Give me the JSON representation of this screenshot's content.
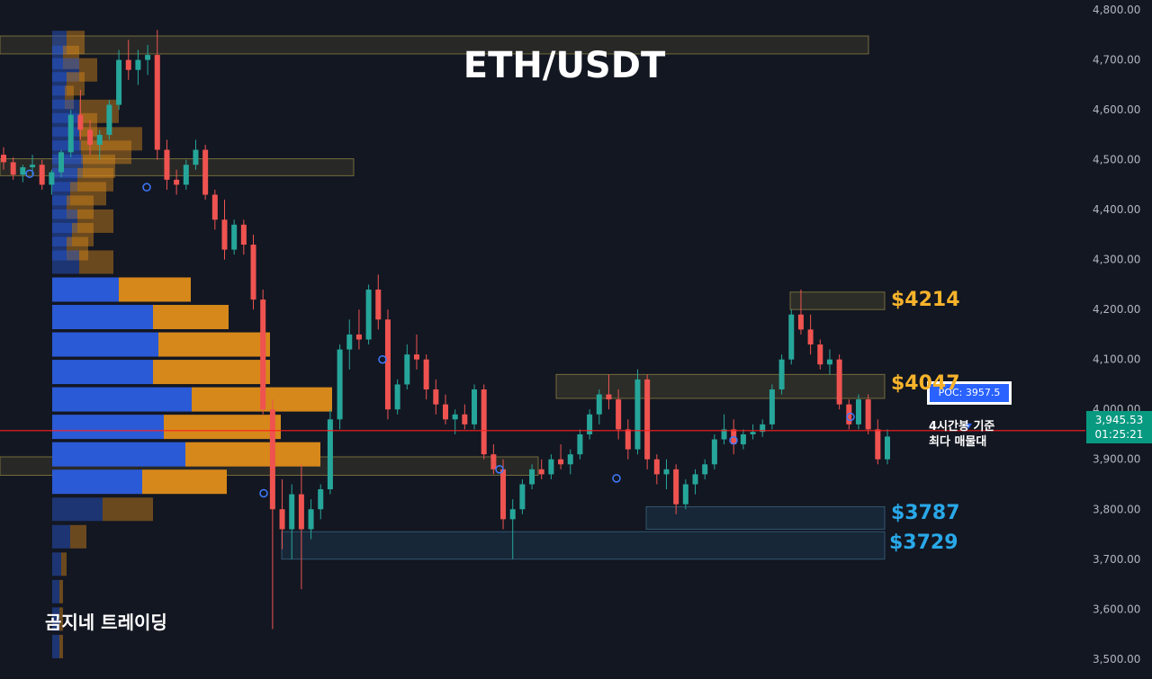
{
  "header": {
    "title": "ETH/USDT"
  },
  "watermark": "곰지네 트레이딩",
  "poc": {
    "label": "POC: 3957.5",
    "note_line1": "4시간봉 기준",
    "note_line2": "최다 매물대"
  },
  "current_price": {
    "price_label": "3,945.53",
    "countdown": "01:25:21",
    "value": 3945.53
  },
  "zones": [
    {
      "label": "$4214",
      "low": 4200,
      "high": 4235,
      "color": "#f7b32b"
    },
    {
      "label": "$4047",
      "low": 4022,
      "high": 4070,
      "color": "#f7b32b"
    },
    {
      "label": "$3787",
      "low": 3760,
      "high": 3805,
      "color": "#29a8e8"
    },
    {
      "label": "$3729",
      "low": 3700,
      "high": 3755,
      "color": "#29a8e8"
    }
  ],
  "colors": {
    "up": "#26a69a",
    "down": "#ef5350",
    "poc_line": "#ff1f1f",
    "profile_blue": "#2b5ad6",
    "profile_orange": "#d6881a"
  },
  "chart_data": {
    "type": "candlestick",
    "title": "ETH/USDT",
    "timeframe": "4H",
    "ylim": [
      3460,
      4820
    ],
    "y_ticks": [
      "3,500.00",
      "3,600.00",
      "3,700.00",
      "3,800.00",
      "3,900.00",
      "4,000.00",
      "4,100.00",
      "4,200.00",
      "4,300.00",
      "4,400.00",
      "4,500.00",
      "4,600.00",
      "4,700.00",
      "4,800.00"
    ],
    "y_tick_values": [
      3500,
      3600,
      3700,
      3800,
      3900,
      4000,
      4100,
      4200,
      4300,
      4400,
      4500,
      4600,
      4700,
      4800
    ],
    "poc_price": 3957.5,
    "last_price": 3945.53,
    "ohlc": [
      [
        4510,
        4525,
        4480,
        4495
      ],
      [
        4495,
        4505,
        4460,
        4470
      ],
      [
        4470,
        4490,
        4455,
        4485
      ],
      [
        4485,
        4510,
        4470,
        4490
      ],
      [
        4490,
        4500,
        4440,
        4450
      ],
      [
        4450,
        4480,
        4430,
        4475
      ],
      [
        4475,
        4520,
        4465,
        4515
      ],
      [
        4515,
        4600,
        4505,
        4590
      ],
      [
        4590,
        4640,
        4540,
        4560
      ],
      [
        4560,
        4580,
        4510,
        4530
      ],
      [
        4530,
        4560,
        4500,
        4550
      ],
      [
        4550,
        4620,
        4540,
        4610
      ],
      [
        4610,
        4720,
        4600,
        4700
      ],
      [
        4700,
        4740,
        4660,
        4680
      ],
      [
        4680,
        4720,
        4650,
        4700
      ],
      [
        4700,
        4730,
        4670,
        4710
      ],
      [
        4710,
        4760,
        4500,
        4520
      ],
      [
        4520,
        4540,
        4440,
        4460
      ],
      [
        4460,
        4480,
        4430,
        4450
      ],
      [
        4450,
        4500,
        4440,
        4490
      ],
      [
        4490,
        4540,
        4480,
        4520
      ],
      [
        4520,
        4530,
        4420,
        4430
      ],
      [
        4430,
        4440,
        4360,
        4380
      ],
      [
        4380,
        4420,
        4300,
        4320
      ],
      [
        4320,
        4380,
        4310,
        4370
      ],
      [
        4370,
        4380,
        4310,
        4330
      ],
      [
        4330,
        4350,
        4200,
        4220
      ],
      [
        4220,
        4240,
        3990,
        4000
      ],
      [
        4000,
        4020,
        3560,
        3800
      ],
      [
        3800,
        3860,
        3720,
        3760
      ],
      [
        3760,
        3850,
        3700,
        3830
      ],
      [
        3830,
        3890,
        3640,
        3760
      ],
      [
        3760,
        3820,
        3740,
        3800
      ],
      [
        3800,
        3850,
        3780,
        3840
      ],
      [
        3840,
        4000,
        3830,
        3980
      ],
      [
        3980,
        4130,
        3960,
        4120
      ],
      [
        4120,
        4180,
        4080,
        4150
      ],
      [
        4150,
        4200,
        4120,
        4140
      ],
      [
        4140,
        4250,
        4130,
        4240
      ],
      [
        4240,
        4270,
        4160,
        4180
      ],
      [
        4180,
        4200,
        3980,
        4000
      ],
      [
        4000,
        4060,
        3990,
        4050
      ],
      [
        4050,
        4130,
        4040,
        4110
      ],
      [
        4110,
        4150,
        4080,
        4100
      ],
      [
        4100,
        4110,
        4020,
        4040
      ],
      [
        4040,
        4060,
        3990,
        4010
      ],
      [
        4010,
        4030,
        3970,
        3980
      ],
      [
        3980,
        4000,
        3950,
        3990
      ],
      [
        3990,
        4010,
        3960,
        3970
      ],
      [
        3970,
        4050,
        3960,
        4040
      ],
      [
        4040,
        4050,
        3900,
        3910
      ],
      [
        3910,
        3930,
        3870,
        3880
      ],
      [
        3880,
        3900,
        3760,
        3780
      ],
      [
        3780,
        3820,
        3700,
        3800
      ],
      [
        3800,
        3860,
        3790,
        3850
      ],
      [
        3850,
        3890,
        3840,
        3880
      ],
      [
        3880,
        3900,
        3860,
        3870
      ],
      [
        3870,
        3910,
        3860,
        3900
      ],
      [
        3900,
        3930,
        3880,
        3890
      ],
      [
        3890,
        3920,
        3870,
        3910
      ],
      [
        3910,
        3960,
        3900,
        3950
      ],
      [
        3950,
        4000,
        3940,
        3990
      ],
      [
        3990,
        4040,
        3970,
        4030
      ],
      [
        4030,
        4070,
        4000,
        4020
      ],
      [
        4020,
        4040,
        3940,
        3960
      ],
      [
        3960,
        3980,
        3900,
        3920
      ],
      [
        3920,
        4080,
        3910,
        4060
      ],
      [
        4060,
        4070,
        3880,
        3900
      ],
      [
        3900,
        3910,
        3850,
        3870
      ],
      [
        3870,
        3900,
        3840,
        3880
      ],
      [
        3880,
        3890,
        3790,
        3810
      ],
      [
        3810,
        3860,
        3800,
        3850
      ],
      [
        3850,
        3880,
        3830,
        3870
      ],
      [
        3870,
        3900,
        3860,
        3890
      ],
      [
        3890,
        3950,
        3880,
        3940
      ],
      [
        3940,
        3990,
        3930,
        3960
      ],
      [
        3960,
        3980,
        3910,
        3930
      ],
      [
        3930,
        3960,
        3920,
        3950
      ],
      [
        3950,
        3970,
        3940,
        3955
      ],
      [
        3955,
        3980,
        3945,
        3970
      ],
      [
        3970,
        4050,
        3960,
        4040
      ],
      [
        4040,
        4110,
        4030,
        4100
      ],
      [
        4100,
        4200,
        4090,
        4190
      ],
      [
        4190,
        4240,
        4150,
        4160
      ],
      [
        4160,
        4190,
        4110,
        4130
      ],
      [
        4130,
        4140,
        4080,
        4090
      ],
      [
        4090,
        4120,
        4070,
        4100
      ],
      [
        4100,
        4110,
        4000,
        4010
      ],
      [
        4010,
        4020,
        3960,
        3970
      ],
      [
        3970,
        4030,
        3960,
        4020
      ],
      [
        4020,
        4030,
        3950,
        3960
      ],
      [
        3960,
        3980,
        3890,
        3900
      ],
      [
        3900,
        3960,
        3890,
        3945.53
      ]
    ],
    "volume_profile": [
      {
        "price": 4735,
        "buy": 16,
        "sell": 20
      },
      {
        "price": 4705,
        "buy": 12,
        "sell": 18
      },
      {
        "price": 4680,
        "buy": 30,
        "sell": 20
      },
      {
        "price": 4652,
        "buy": 16,
        "sell": 20
      },
      {
        "price": 4625,
        "buy": 14,
        "sell": 10
      },
      {
        "price": 4597,
        "buy": 30,
        "sell": 44
      },
      {
        "price": 4570,
        "buy": 30,
        "sell": 20
      },
      {
        "price": 4542,
        "buy": 30,
        "sell": 70
      },
      {
        "price": 4515,
        "buy": 32,
        "sell": 56
      },
      {
        "price": 4487,
        "buy": 34,
        "sell": 36
      },
      {
        "price": 4460,
        "buy": 28,
        "sell": 40
      },
      {
        "price": 4432,
        "buy": 20,
        "sell": 40
      },
      {
        "price": 4405,
        "buy": 16,
        "sell": 30
      },
      {
        "price": 4377,
        "buy": 28,
        "sell": 40
      },
      {
        "price": 4350,
        "buy": 22,
        "sell": 24
      },
      {
        "price": 4322,
        "buy": 16,
        "sell": 24
      },
      {
        "price": 4295,
        "buy": 30,
        "sell": 38
      },
      {
        "price": 4240,
        "buy": 74,
        "sell": 80
      },
      {
        "price": 4185,
        "buy": 112,
        "sell": 84
      },
      {
        "price": 4130,
        "buy": 118,
        "sell": 124
      },
      {
        "price": 4075,
        "buy": 112,
        "sell": 130
      },
      {
        "price": 4020,
        "buy": 155,
        "sell": 156
      },
      {
        "price": 3965,
        "buy": 124,
        "sell": 130
      },
      {
        "price": 3910,
        "buy": 148,
        "sell": 150
      },
      {
        "price": 3855,
        "buy": 100,
        "sell": 94
      },
      {
        "price": 3800,
        "buy": 56,
        "sell": 56
      },
      {
        "price": 3745,
        "buy": 20,
        "sell": 18
      },
      {
        "price": 3690,
        "buy": 10,
        "sell": 6
      },
      {
        "price": 3635,
        "buy": 8,
        "sell": 4
      },
      {
        "price": 3580,
        "buy": 8,
        "sell": 4
      },
      {
        "price": 3525,
        "buy": 8,
        "sell": 4
      }
    ],
    "range_boxes": [
      {
        "low": 4712,
        "high": 4748,
        "x_start": 0,
        "x_end": 965
      },
      {
        "low": 4468,
        "high": 4502,
        "x_start": 0,
        "x_end": 393
      },
      {
        "low": 3868,
        "high": 3905,
        "x_start": 0,
        "x_end": 598
      }
    ]
  }
}
